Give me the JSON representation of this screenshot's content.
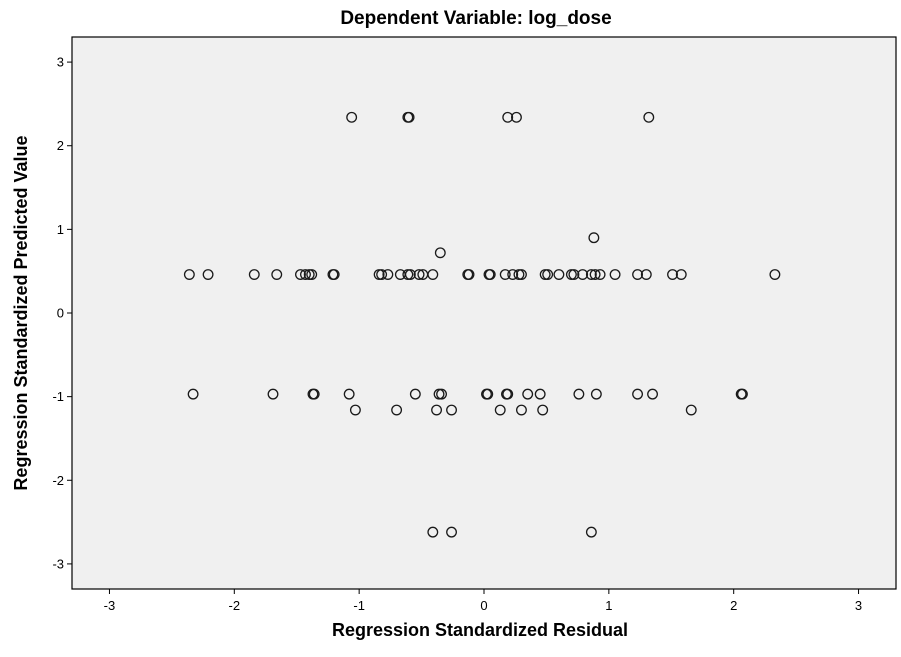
{
  "chart_data": {
    "type": "scatter",
    "title": "Dependent Variable: log_dose",
    "xlabel": "Regression Standardized Residual",
    "ylabel": "Regression Standardized Predicted Value",
    "xlim": [
      -3.3,
      3.3
    ],
    "ylim": [
      -3.3,
      3.3
    ],
    "xticks": [
      -3,
      -2,
      -1,
      0,
      1,
      2,
      3
    ],
    "yticks": [
      -3,
      -2,
      -1,
      0,
      1,
      2,
      3
    ],
    "grid": false,
    "marker": "hollow-circle",
    "colors": {
      "plot_background": "#f0f0f0",
      "marker_stroke": "#1a1a1a"
    },
    "points": [
      [
        -1.06,
        2.34
      ],
      [
        -0.61,
        2.34
      ],
      [
        -0.6,
        2.34
      ],
      [
        0.19,
        2.34
      ],
      [
        0.26,
        2.34
      ],
      [
        1.32,
        2.34
      ],
      [
        0.88,
        0.9
      ],
      [
        -0.35,
        0.72
      ],
      [
        -2.36,
        0.46
      ],
      [
        -2.21,
        0.46
      ],
      [
        -1.84,
        0.46
      ],
      [
        -1.66,
        0.46
      ],
      [
        -1.47,
        0.46
      ],
      [
        -1.43,
        0.46
      ],
      [
        -1.4,
        0.46
      ],
      [
        -1.38,
        0.46
      ],
      [
        -1.21,
        0.46
      ],
      [
        -1.2,
        0.46
      ],
      [
        -0.84,
        0.46
      ],
      [
        -0.82,
        0.46
      ],
      [
        -0.77,
        0.46
      ],
      [
        -0.67,
        0.46
      ],
      [
        -0.61,
        0.46
      ],
      [
        -0.59,
        0.46
      ],
      [
        -0.52,
        0.46
      ],
      [
        -0.49,
        0.46
      ],
      [
        -0.41,
        0.46
      ],
      [
        -0.13,
        0.46
      ],
      [
        -0.12,
        0.46
      ],
      [
        0.04,
        0.46
      ],
      [
        0.05,
        0.46
      ],
      [
        0.17,
        0.46
      ],
      [
        0.23,
        0.46
      ],
      [
        0.28,
        0.46
      ],
      [
        0.3,
        0.46
      ],
      [
        0.49,
        0.46
      ],
      [
        0.51,
        0.46
      ],
      [
        0.6,
        0.46
      ],
      [
        0.7,
        0.46
      ],
      [
        0.72,
        0.46
      ],
      [
        0.79,
        0.46
      ],
      [
        0.86,
        0.46
      ],
      [
        0.89,
        0.46
      ],
      [
        0.93,
        0.46
      ],
      [
        1.05,
        0.46
      ],
      [
        1.23,
        0.46
      ],
      [
        1.3,
        0.46
      ],
      [
        1.51,
        0.46
      ],
      [
        1.58,
        0.46
      ],
      [
        2.33,
        0.46
      ],
      [
        -2.33,
        -0.97
      ],
      [
        -1.69,
        -0.97
      ],
      [
        -1.37,
        -0.97
      ],
      [
        -1.36,
        -0.97
      ],
      [
        -1.08,
        -0.97
      ],
      [
        -0.55,
        -0.97
      ],
      [
        -0.36,
        -0.97
      ],
      [
        -0.34,
        -0.97
      ],
      [
        0.02,
        -0.97
      ],
      [
        0.03,
        -0.97
      ],
      [
        0.18,
        -0.97
      ],
      [
        0.19,
        -0.97
      ],
      [
        0.35,
        -0.97
      ],
      [
        0.45,
        -0.97
      ],
      [
        0.76,
        -0.97
      ],
      [
        0.9,
        -0.97
      ],
      [
        1.23,
        -0.97
      ],
      [
        1.35,
        -0.97
      ],
      [
        2.06,
        -0.97
      ],
      [
        2.07,
        -0.97
      ],
      [
        -1.03,
        -1.16
      ],
      [
        -0.7,
        -1.16
      ],
      [
        -0.38,
        -1.16
      ],
      [
        -0.26,
        -1.16
      ],
      [
        0.13,
        -1.16
      ],
      [
        0.3,
        -1.16
      ],
      [
        0.47,
        -1.16
      ],
      [
        1.66,
        -1.16
      ],
      [
        -0.41,
        -2.62
      ],
      [
        -0.26,
        -2.62
      ],
      [
        0.86,
        -2.62
      ]
    ]
  }
}
